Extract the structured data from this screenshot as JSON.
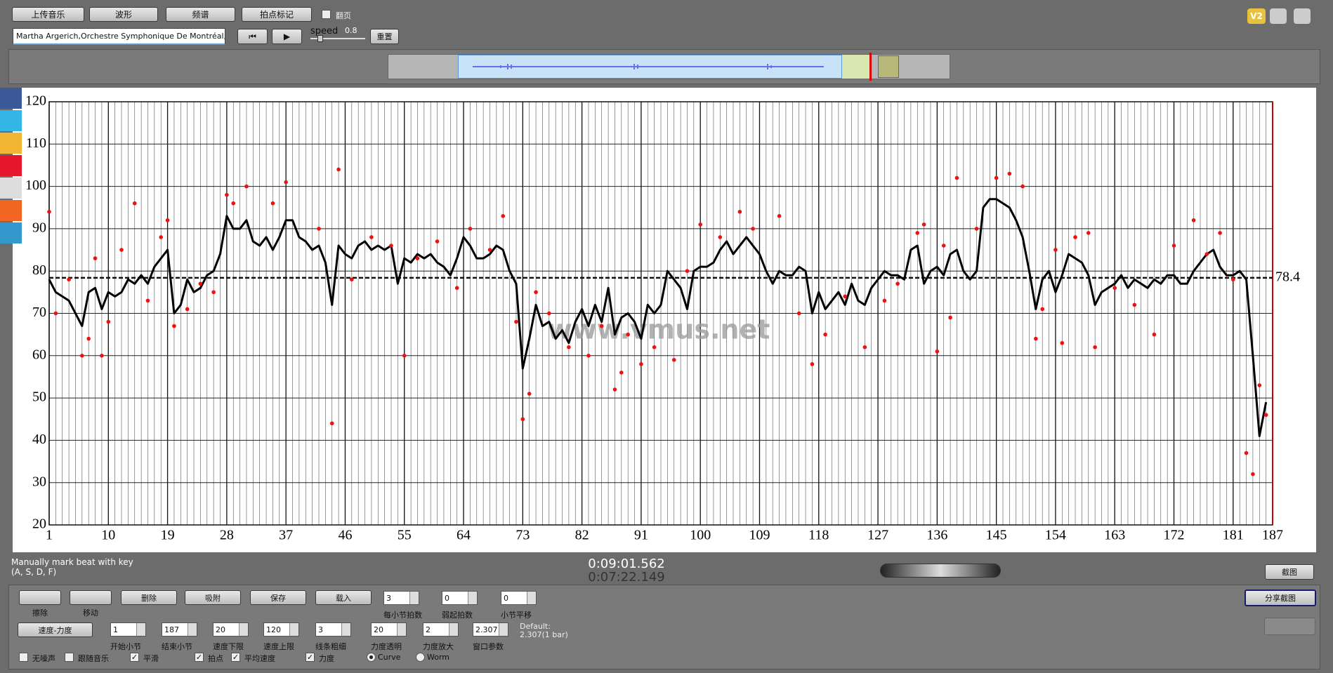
{
  "toolbar": {
    "buttons": [
      "上传音乐",
      "波形",
      "频谱",
      "拍点标记"
    ],
    "page_toggle": "翻页",
    "track": "Martha Argerich,Orchestre Symphonique De Montréal,Charle",
    "speed_label": "speed",
    "speed": 0.8,
    "reset": "重置",
    "logo": "V2"
  },
  "chart_data": {
    "type": "line",
    "watermark": "www.vmus.net",
    "xlim": [
      1,
      187
    ],
    "xticks": [
      1,
      10,
      19,
      28,
      37,
      46,
      55,
      64,
      73,
      82,
      91,
      100,
      109,
      118,
      127,
      136,
      145,
      154,
      163,
      172,
      181,
      187
    ],
    "ylim": [
      20,
      120
    ],
    "yticks": [
      20,
      30,
      40,
      50,
      60,
      70,
      80,
      90,
      100,
      110,
      120
    ],
    "grid": true,
    "beat_grid": true,
    "mean": 78.4,
    "line": {
      "color": "#000000",
      "x": [
        1,
        2,
        3,
        4,
        5,
        6,
        7,
        8,
        9,
        10,
        11,
        12,
        13,
        14,
        15,
        16,
        17,
        18,
        19,
        20,
        21,
        22,
        23,
        24,
        25,
        26,
        27,
        28,
        29,
        30,
        31,
        32,
        33,
        34,
        35,
        36,
        37,
        38,
        39,
        40,
        41,
        42,
        43,
        44,
        45,
        46,
        47,
        48,
        49,
        50,
        51,
        52,
        53,
        54,
        55,
        56,
        57,
        58,
        59,
        60,
        61,
        62,
        63,
        64,
        65,
        66,
        67,
        68,
        69,
        70,
        71,
        72,
        73,
        74,
        75,
        76,
        77,
        78,
        79,
        80,
        81,
        82,
        83,
        84,
        85,
        86,
        87,
        88,
        89,
        90,
        91,
        92,
        93,
        94,
        95,
        96,
        97,
        98,
        99,
        100,
        101,
        102,
        103,
        104,
        105,
        106,
        107,
        108,
        109,
        110,
        111,
        112,
        113,
        114,
        115,
        116,
        117,
        118,
        119,
        120,
        121,
        122,
        123,
        124,
        125,
        126,
        127,
        128,
        129,
        130,
        131,
        132,
        133,
        134,
        135,
        136,
        137,
        138,
        139,
        140,
        141,
        142,
        143,
        144,
        145,
        146,
        147,
        148,
        149,
        150,
        151,
        152,
        153,
        154,
        155,
        156,
        157,
        158,
        159,
        160,
        161,
        162,
        163,
        164,
        165,
        166,
        167,
        168,
        169,
        170,
        171,
        172,
        173,
        174,
        175,
        176,
        177,
        178,
        179,
        180,
        181,
        182,
        183,
        184,
        185,
        186
      ],
      "values": [
        78,
        75,
        74,
        73,
        70,
        67,
        75,
        76,
        71,
        75,
        74,
        75,
        78,
        77,
        79,
        77,
        81,
        83,
        85,
        70,
        72,
        78,
        75,
        76,
        79,
        80,
        84,
        93,
        90,
        90,
        92,
        87,
        86,
        88,
        85,
        88,
        92,
        92,
        88,
        87,
        85,
        86,
        82,
        72,
        86,
        84,
        83,
        86,
        87,
        85,
        86,
        85,
        86,
        77,
        83,
        82,
        84,
        83,
        84,
        82,
        81,
        79,
        83,
        88,
        86,
        83,
        83,
        84,
        86,
        85,
        80,
        77,
        57,
        64,
        72,
        67,
        68,
        64,
        66,
        63,
        68,
        71,
        67,
        72,
        68,
        76,
        65,
        69,
        70,
        68,
        64,
        72,
        70,
        72,
        80,
        78,
        76,
        71,
        80,
        81,
        81,
        82,
        85,
        87,
        84,
        86,
        88,
        86,
        84,
        80,
        77,
        80,
        79,
        79,
        81,
        80,
        70,
        75,
        71,
        73,
        75,
        72,
        77,
        73,
        72,
        76,
        78,
        80,
        79,
        79,
        78,
        85,
        86,
        77,
        80,
        81,
        79,
        84,
        85,
        80,
        78,
        80,
        95,
        97,
        97,
        96,
        95,
        92,
        88,
        80,
        71,
        78,
        80,
        75,
        79,
        84,
        83,
        82,
        79,
        72,
        75,
        76,
        77,
        79,
        76,
        78,
        77,
        76,
        78,
        77,
        79,
        79,
        77,
        77,
        80,
        82,
        84,
        85,
        81,
        79,
        79,
        80,
        78,
        60,
        41,
        49
      ]
    },
    "points": {
      "color": "#ee1111",
      "x": [
        1,
        2,
        4,
        6,
        7,
        8,
        9,
        10,
        12,
        14,
        16,
        18,
        19,
        20,
        22,
        24,
        26,
        28,
        29,
        31,
        35,
        37,
        42,
        44,
        45,
        47,
        50,
        53,
        55,
        57,
        60,
        63,
        65,
        68,
        70,
        72,
        73,
        74,
        75,
        77,
        80,
        83,
        85,
        87,
        88,
        89,
        91,
        93,
        96,
        98,
        100,
        103,
        106,
        108,
        112,
        115,
        117,
        119,
        122,
        125,
        128,
        130,
        133,
        134,
        136,
        137,
        138,
        139,
        142,
        145,
        147,
        149,
        151,
        152,
        154,
        155,
        157,
        159,
        160,
        163,
        166,
        169,
        172,
        175,
        177,
        179,
        181,
        183,
        184,
        185,
        186
      ],
      "values": [
        94,
        70,
        78,
        60,
        64,
        83,
        60,
        68,
        85,
        96,
        73,
        88,
        92,
        67,
        71,
        77,
        75,
        98,
        96,
        100,
        96,
        101,
        90,
        44,
        104,
        78,
        88,
        86,
        60,
        83,
        87,
        76,
        90,
        85,
        93,
        68,
        45,
        51,
        75,
        70,
        62,
        60,
        67,
        52,
        56,
        65,
        58,
        62,
        59,
        80,
        91,
        88,
        94,
        90,
        93,
        70,
        58,
        65,
        74,
        62,
        73,
        77,
        89,
        91,
        61,
        86,
        69,
        102,
        90,
        102,
        103,
        100,
        64,
        71,
        85,
        63,
        88,
        89,
        62,
        76,
        72,
        65,
        86,
        92,
        84,
        89,
        78,
        37,
        32,
        53,
        46
      ]
    }
  },
  "status": {
    "hint": [
      "Manually mark beat with key",
      "(A, S, D, F)"
    ],
    "total_time": "0:09:01.562",
    "current_time": "0:07:22.149",
    "screenshot": "截图"
  },
  "controls": {
    "tools": [
      "擦除",
      "移动"
    ],
    "actions": [
      "删除",
      "吸附",
      "保存",
      "载入"
    ],
    "beat_spinners": [
      {
        "value": 3,
        "label": "每小节拍数"
      },
      {
        "value": 0,
        "label": "弱起拍数"
      },
      {
        "value": 0,
        "label": "小节平移"
      }
    ],
    "share": "分享截图",
    "mode": "速度-力度",
    "spinners": [
      {
        "value": 1,
        "label": "开始小节"
      },
      {
        "value": 187,
        "label": "结束小节"
      },
      {
        "value": 20,
        "label": "速度下限"
      },
      {
        "value": 120,
        "label": "速度上限"
      },
      {
        "value": 3,
        "label": "线条粗细"
      },
      {
        "value": 20,
        "label": "力度透明"
      },
      {
        "value": 2,
        "label": "力度放大"
      },
      {
        "value": 2.307,
        "label": "窗口参数"
      }
    ],
    "default_label": "Default:",
    "default_value": "2.307(1 bar)",
    "options": [
      {
        "label": "无噪声",
        "checked": false
      },
      {
        "label": "跟随音乐",
        "checked": false
      },
      {
        "label": "平滑",
        "checked": true
      },
      {
        "label": "拍点",
        "checked": true
      },
      {
        "label": "平均速度",
        "checked": true
      },
      {
        "label": "力度",
        "checked": true
      }
    ],
    "radios": [
      {
        "label": "Curve",
        "selected": true
      },
      {
        "label": "Worm",
        "selected": false
      }
    ]
  }
}
